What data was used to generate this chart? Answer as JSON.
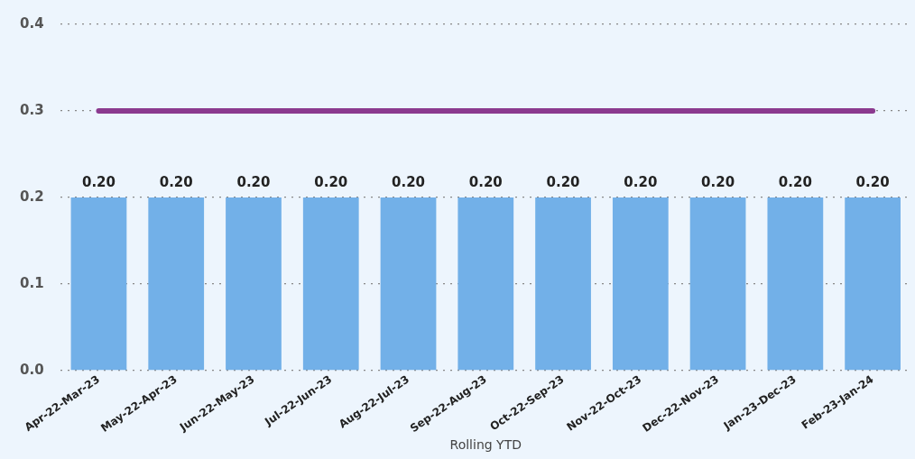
{
  "chart_data": {
    "type": "bar",
    "xlabel": "Rolling YTD",
    "categories": [
      "Apr-22-Mar-23",
      "May-22-Apr-23",
      "Jun-22-May-23",
      "Jul-22-Jun-23",
      "Aug-22-Jul-23",
      "Sep-22-Aug-23",
      "Oct-22-Sep-23",
      "Nov-22-Oct-23",
      "Dec-22-Nov-23",
      "Jan-23-Dec-23",
      "Feb-23-Jan-24"
    ],
    "series": [
      {
        "color": "#72b0e8",
        "values": [
          0.2,
          0.2,
          0.2,
          0.2,
          0.2,
          0.2,
          0.2,
          0.2,
          0.2,
          0.2,
          0.2
        ],
        "value_labels": [
          "0.20",
          "0.20",
          "0.20",
          "0.20",
          "0.20",
          "0.20",
          "0.20",
          "0.20",
          "0.20",
          "0.20",
          "0.20"
        ]
      },
      {
        "type": "line",
        "color": "#8b3a8f",
        "values": [
          0.3,
          0.3,
          0.3,
          0.3,
          0.3,
          0.3,
          0.3,
          0.3,
          0.3,
          0.3,
          0.3
        ],
        "marker": "none"
      }
    ],
    "ylim": [
      0,
      0.4
    ],
    "yticks": [
      {
        "value": 0,
        "label": "0.0"
      },
      0.1,
      0.2,
      0.3,
      0.4
    ],
    "grid": "y",
    "legend": false
  }
}
